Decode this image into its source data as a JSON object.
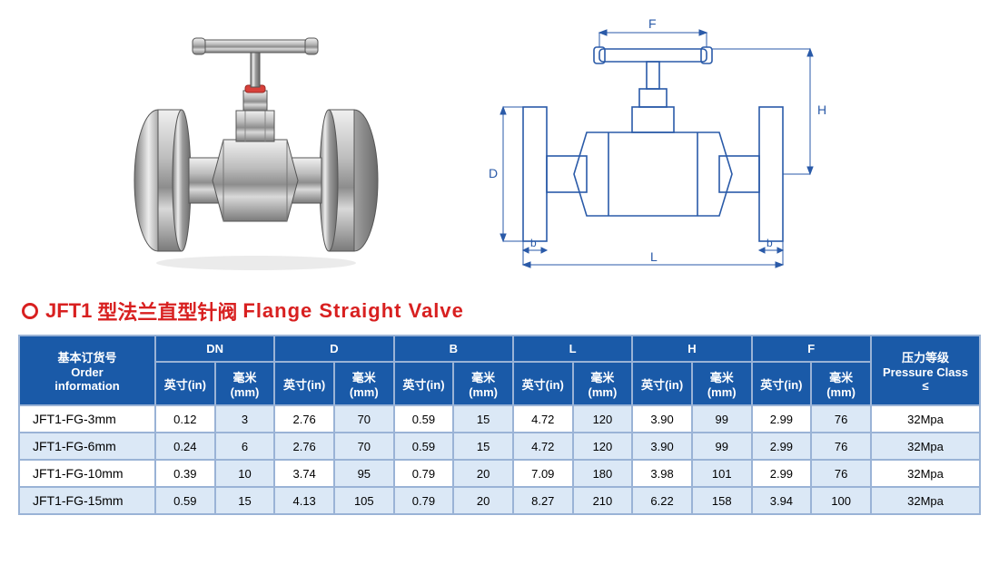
{
  "colors": {
    "diagram_line": "#2a5aa8",
    "title_red": "#d82020",
    "header_bg": "#1a5aa8",
    "row_alt_bg": "#dbe8f6",
    "row_bg": "#ffffff",
    "border": "#9ab3d6",
    "metal_light": "#e8e8e8",
    "metal_mid": "#bcbcbc",
    "metal_dark": "#6e6e6e",
    "red_ring": "#d8403a"
  },
  "diagram_labels": {
    "F": "F",
    "H": "H",
    "D": "D",
    "L": "L",
    "b": "b"
  },
  "title": {
    "model": "JFT1",
    "cn": "型法兰直型针阀",
    "en": "Flange  Straight  Valve"
  },
  "table": {
    "order_header_cn": "基本订货号",
    "order_header_en1": "Order",
    "order_header_en2": "information",
    "pressure_header_cn": "压力等级",
    "pressure_header_en": "Pressure Class",
    "pressure_header_sym": "≤",
    "dims": [
      "DN",
      "D",
      "B",
      "L",
      "H",
      "F"
    ],
    "sub_in": "英寸(in)",
    "sub_mm": "毫米(mm)",
    "rows": [
      {
        "order": "JFT1-FG-3mm",
        "vals": [
          "0.12",
          "3",
          "2.76",
          "70",
          "0.59",
          "15",
          "4.72",
          "120",
          "3.90",
          "99",
          "2.99",
          "76"
        ],
        "pressure": "32Mpa"
      },
      {
        "order": "JFT1-FG-6mm",
        "vals": [
          "0.24",
          "6",
          "2.76",
          "70",
          "0.59",
          "15",
          "4.72",
          "120",
          "3.90",
          "99",
          "2.99",
          "76"
        ],
        "pressure": "32Mpa"
      },
      {
        "order": "JFT1-FG-10mm",
        "vals": [
          "0.39",
          "10",
          "3.74",
          "95",
          "0.79",
          "20",
          "7.09",
          "180",
          "3.98",
          "101",
          "2.99",
          "76"
        ],
        "pressure": "32Mpa"
      },
      {
        "order": "JFT1-FG-15mm",
        "vals": [
          "0.59",
          "15",
          "4.13",
          "105",
          "0.79",
          "20",
          "8.27",
          "210",
          "6.22",
          "158",
          "3.94",
          "100"
        ],
        "pressure": "32Mpa"
      }
    ]
  }
}
